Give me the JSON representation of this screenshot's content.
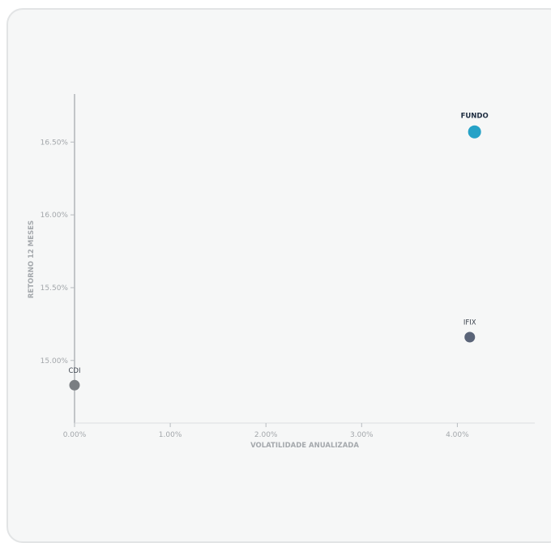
{
  "chart_data": {
    "type": "scatter",
    "title": "",
    "xlabel": "VOLATILIDADE ANUALIZADA",
    "ylabel": "RETORNO 12 MESES",
    "xlim": [
      0.0,
      4.8
    ],
    "ylim": [
      14.57,
      16.83
    ],
    "x_ticks": [
      0.0,
      1.0,
      2.0,
      3.0,
      4.0
    ],
    "x_tick_labels": [
      "0.00%",
      "1.00%",
      "2.00%",
      "3.00%",
      "4.00%"
    ],
    "y_ticks": [
      15.0,
      15.5,
      16.0,
      16.5
    ],
    "y_tick_labels": [
      "15.00%",
      "15.50%",
      "16.00%",
      "16.50%"
    ],
    "grid": false,
    "points": [
      {
        "label": "FUNDO",
        "x": 4.18,
        "y": 16.57,
        "color": "#26a2c7",
        "highlight": true
      },
      {
        "label": "IFIX",
        "x": 4.13,
        "y": 15.16,
        "color": "#5a6478",
        "highlight": false
      },
      {
        "label": "CDI",
        "x": 0.0,
        "y": 14.83,
        "color": "#7a7e82",
        "highlight": false
      }
    ]
  }
}
